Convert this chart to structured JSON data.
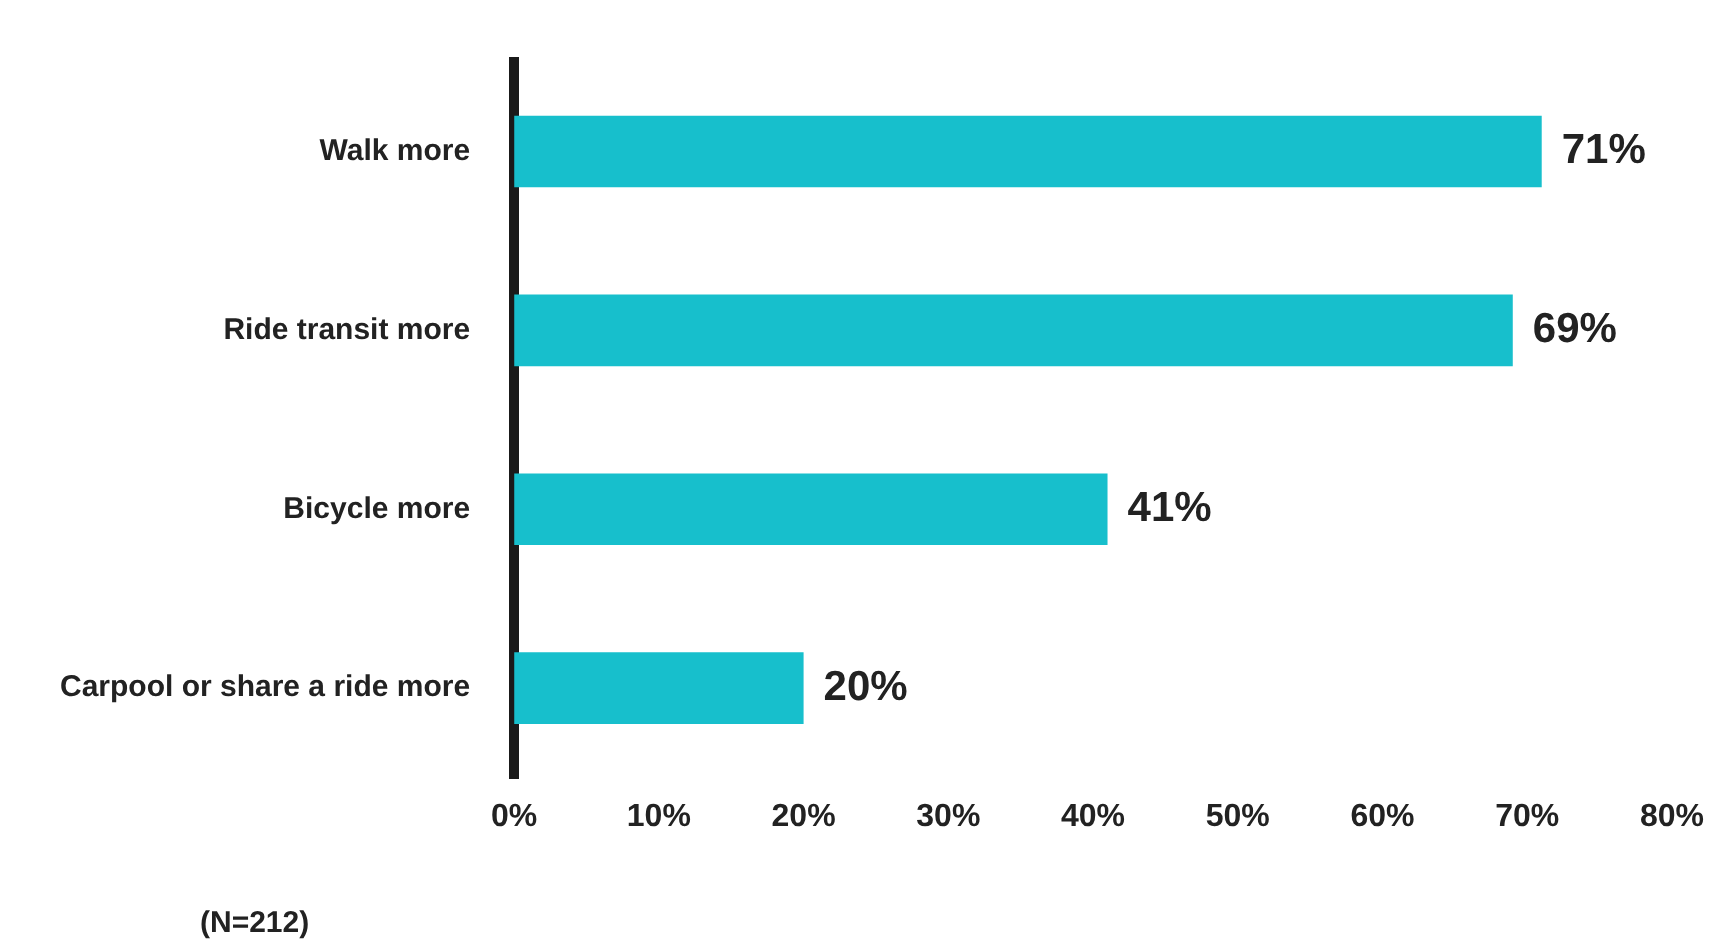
{
  "chart_data": {
    "type": "bar",
    "orientation": "horizontal",
    "categories": [
      "Walk more",
      "Ride transit more",
      "Bicycle more",
      "Carpool or share a ride more"
    ],
    "values": [
      71,
      69,
      41,
      20
    ],
    "value_labels": [
      "71%",
      "69%",
      "41%",
      "20%"
    ],
    "color": "#17bfcc",
    "xlim": [
      0,
      80
    ],
    "xticks": [
      {
        "value": 0,
        "label": "0%"
      },
      {
        "value": 10,
        "label": "10%"
      },
      {
        "value": 20,
        "label": "20%"
      },
      {
        "value": 30,
        "label": "30%"
      },
      {
        "value": 40,
        "label": "40%"
      },
      {
        "value": 50,
        "label": "50%"
      },
      {
        "value": 60,
        "label": "60%"
      },
      {
        "value": 70,
        "label": "70%"
      },
      {
        "value": 80,
        "label": "80%"
      }
    ],
    "grid": false,
    "legend": false,
    "annotations": [
      "(N=212)"
    ]
  }
}
